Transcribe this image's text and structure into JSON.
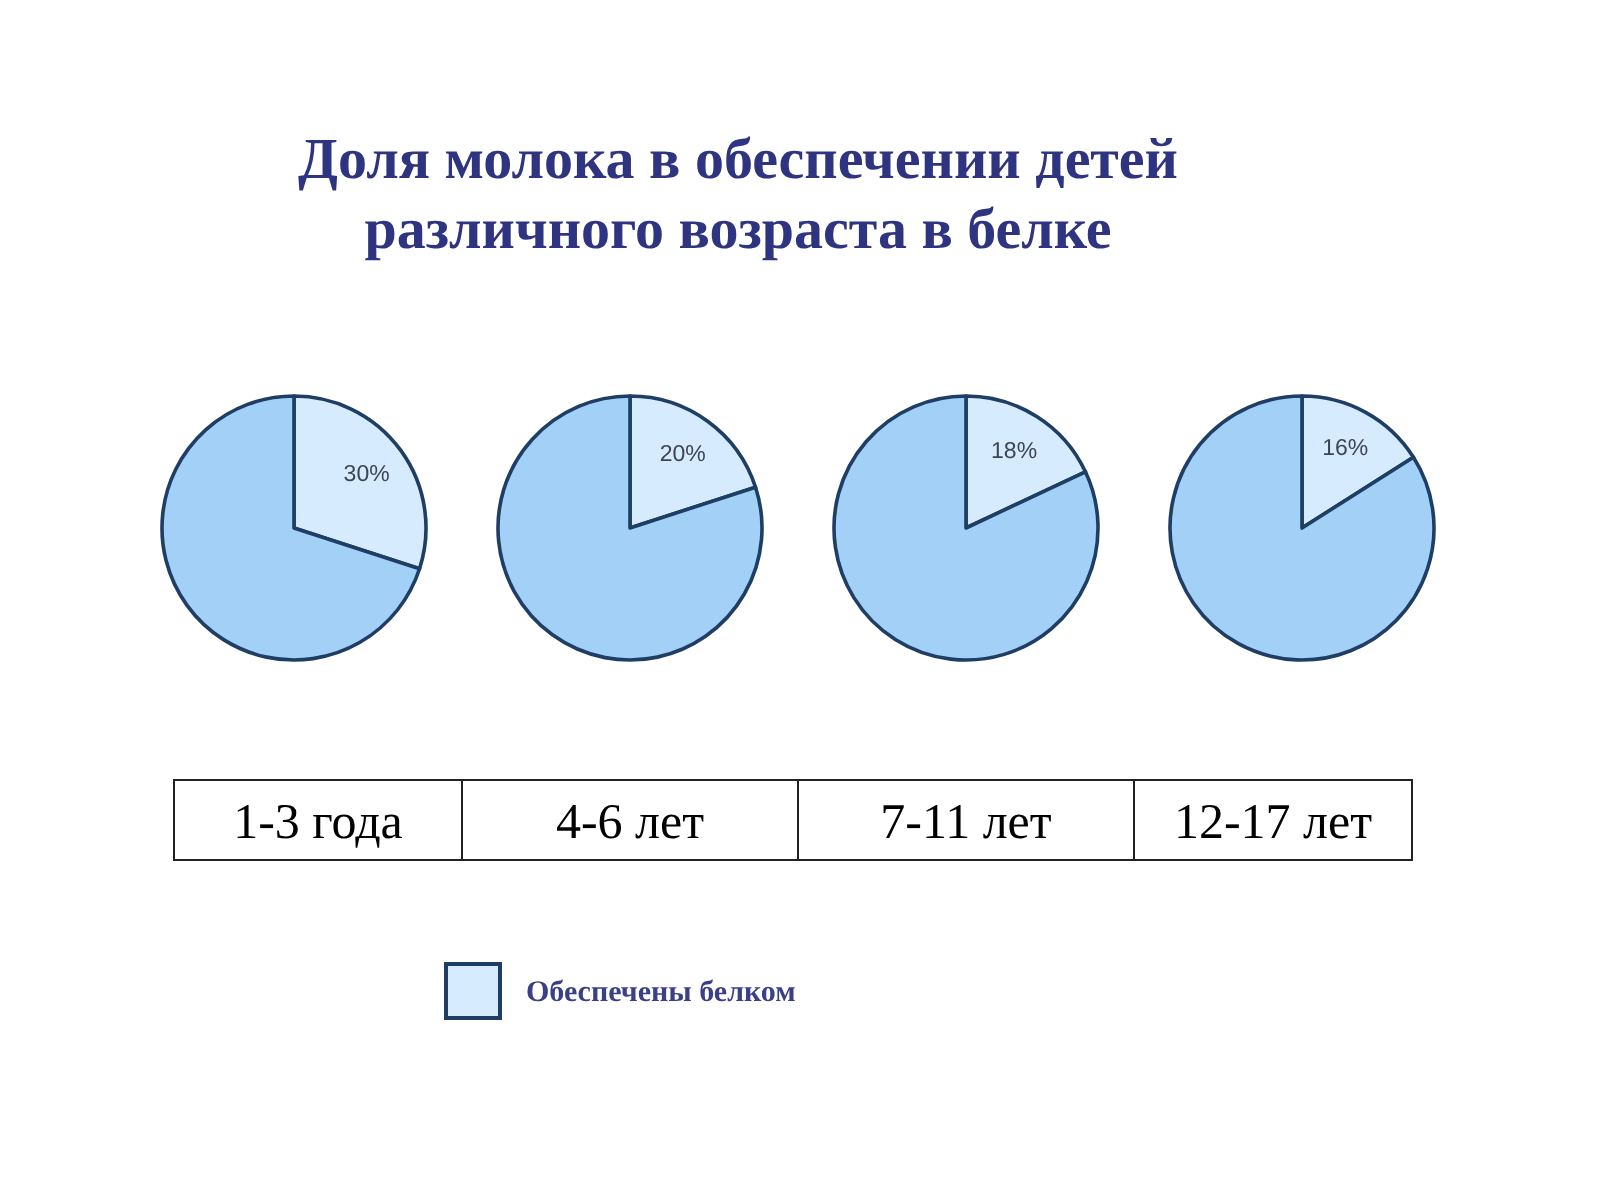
{
  "chart_data": [
    {
      "type": "pie",
      "title": "Доля молока в обеспечении детей\nразличного возраста в белке",
      "xlabel": "1-3 года",
      "categories": [
        "Обеспечены белком",
        null
      ],
      "values": [
        30,
        70
      ],
      "colors": [
        "#d6ebfd",
        "#a3d0f7"
      ],
      "value_labels": [
        "30%",
        null
      ],
      "legend": "bottom"
    },
    {
      "type": "pie",
      "xlabel": "4-6 лет",
      "categories": [
        null,
        null
      ],
      "values": [
        20,
        80
      ],
      "colors": [
        "#d6ebfd",
        "#a3d0f7"
      ],
      "value_labels": [
        "20%",
        null
      ]
    },
    {
      "type": "pie",
      "xlabel": "7-11 лет",
      "categories": [
        null,
        null
      ],
      "values": [
        18,
        82
      ],
      "colors": [
        "#d6ebfd",
        "#a3d0f7"
      ],
      "value_labels": [
        "18%",
        null
      ]
    },
    {
      "type": "pie",
      "xlabel": "12-17 лет",
      "categories": [
        null,
        null
      ],
      "values": [
        16,
        84
      ],
      "colors": [
        "#d6ebfd",
        "#a3d0f7"
      ],
      "value_labels": [
        "16%",
        null
      ]
    }
  ]
}
